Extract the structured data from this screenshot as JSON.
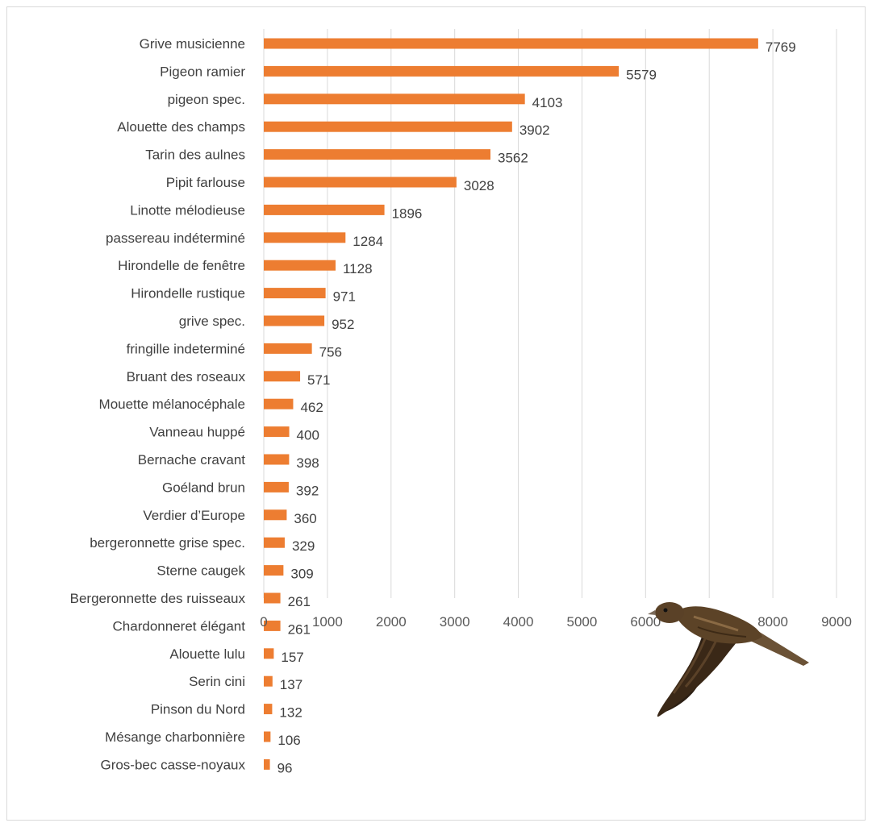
{
  "chart_data": {
    "type": "bar",
    "orientation": "horizontal",
    "title": "",
    "xlabel": "",
    "ylabel": "",
    "xlim": [
      0,
      9000
    ],
    "x_ticks": [
      0,
      1000,
      2000,
      3000,
      4000,
      5000,
      6000,
      7000,
      8000,
      9000
    ],
    "grid": "vertical",
    "bar_color": "#ed7d31",
    "categories": [
      "Grive musicienne",
      "Pigeon ramier",
      "pigeon spec.",
      "Alouette des champs",
      "Tarin des aulnes",
      "Pipit farlouse",
      "Linotte mélodieuse",
      "passereau indéterminé",
      "Hirondelle de fenêtre",
      "Hirondelle rustique",
      "grive spec.",
      "fringille indeterminé",
      "Bruant des roseaux",
      "Mouette mélanocéphale",
      "Vanneau huppé",
      "Bernache cravant",
      "Goéland brun",
      "Verdier d’Europe",
      "bergeronnette grise spec.",
      "Sterne caugek",
      "Bergeronnette des ruisseaux",
      "Chardonneret élégant",
      "Alouette lulu",
      "Serin cini",
      "Pinson du Nord",
      "Mésange charbonnière",
      "Gros-bec casse-noyaux"
    ],
    "values": [
      7769,
      5579,
      4103,
      3902,
      3562,
      3028,
      1896,
      1284,
      1128,
      971,
      952,
      756,
      571,
      462,
      400,
      398,
      392,
      360,
      329,
      309,
      261,
      261,
      157,
      137,
      132,
      106,
      96
    ],
    "decoration": "bird-in-flight-illustration"
  }
}
